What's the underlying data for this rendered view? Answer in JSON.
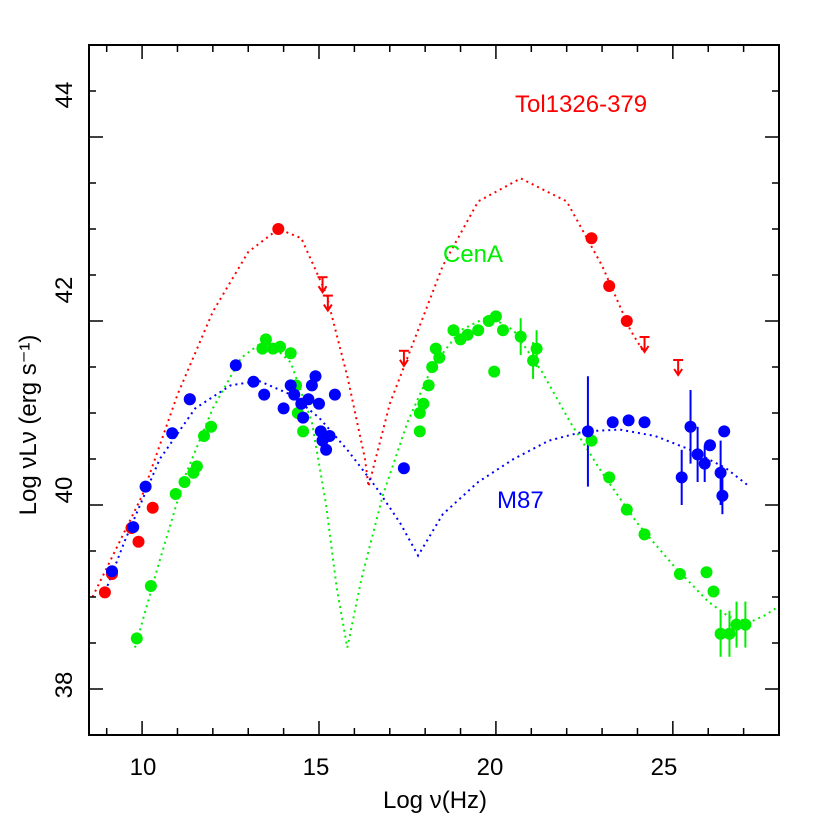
{
  "chart_data": {
    "type": "scatter",
    "xlabel": "Log ν(Hz)",
    "ylabel": "Log νLν (erg s⁻¹)",
    "xlim": [
      8.5,
      28
    ],
    "ylim": [
      37.5,
      45
    ],
    "xticks": [
      "10",
      "15",
      "20",
      "25"
    ],
    "yticks": [
      "38",
      "40",
      "42",
      "44"
    ],
    "grid": false,
    "series": [
      {
        "name": "Tol1326-379",
        "color": "#ff0000",
        "points": [
          [
            8.95,
            39.05
          ],
          [
            9.15,
            39.25
          ],
          [
            9.7,
            39.75
          ],
          [
            9.9,
            39.6
          ],
          [
            10.3,
            39.97
          ],
          [
            11.35,
            41.15
          ],
          [
            13.85,
            43.0
          ],
          [
            22.7,
            42.9
          ],
          [
            23.2,
            42.38
          ],
          [
            23.7,
            42.0
          ]
        ],
        "upper_limits": [
          [
            15.1,
            42.4
          ],
          [
            15.25,
            42.2
          ],
          [
            17.4,
            41.6
          ],
          [
            24.2,
            41.75
          ],
          [
            25.15,
            41.5
          ]
        ],
        "model": [
          [
            8.6,
            39.0
          ],
          [
            10.0,
            40.1
          ],
          [
            11.0,
            41.2
          ],
          [
            12.0,
            42.1
          ],
          [
            13.0,
            42.75
          ],
          [
            13.85,
            43.0
          ],
          [
            14.5,
            42.9
          ],
          [
            15.2,
            42.3
          ],
          [
            15.8,
            41.4
          ],
          [
            16.3,
            40.5
          ],
          [
            16.4,
            40.2
          ],
          [
            16.6,
            40.5
          ],
          [
            17.0,
            41.1
          ],
          [
            17.7,
            41.8
          ],
          [
            18.5,
            42.6
          ],
          [
            19.5,
            43.3
          ],
          [
            20.7,
            43.55
          ],
          [
            22.0,
            43.3
          ],
          [
            23.0,
            42.6
          ],
          [
            23.8,
            41.9
          ],
          [
            24.2,
            41.65
          ]
        ]
      },
      {
        "name": "CenA",
        "color": "#00ee00",
        "points": [
          [
            9.85,
            38.55
          ],
          [
            10.25,
            39.12
          ],
          [
            10.95,
            40.12
          ],
          [
            11.2,
            40.25
          ],
          [
            11.45,
            40.35
          ],
          [
            11.55,
            40.42
          ],
          [
            11.75,
            40.75
          ],
          [
            11.95,
            40.85
          ],
          [
            13.4,
            41.7
          ],
          [
            13.5,
            41.8
          ],
          [
            13.7,
            41.7
          ],
          [
            13.9,
            41.72
          ],
          [
            14.2,
            41.65
          ],
          [
            14.35,
            41.3
          ],
          [
            14.4,
            41.0
          ],
          [
            14.55,
            40.8
          ],
          [
            17.85,
            40.8
          ],
          [
            17.85,
            41.0
          ],
          [
            17.95,
            41.1
          ],
          [
            18.1,
            41.3
          ],
          [
            18.2,
            41.5
          ],
          [
            18.3,
            41.7
          ],
          [
            18.4,
            41.6
          ],
          [
            18.8,
            41.9
          ],
          [
            19.0,
            41.8
          ],
          [
            19.2,
            41.85
          ],
          [
            19.5,
            41.9
          ],
          [
            19.8,
            42.0
          ],
          [
            20.0,
            42.05
          ],
          [
            19.95,
            41.45
          ],
          [
            20.2,
            41.9
          ],
          [
            20.7,
            41.83
          ],
          [
            21.05,
            41.57
          ],
          [
            21.15,
            41.7
          ],
          [
            22.7,
            40.7
          ],
          [
            23.2,
            40.3
          ],
          [
            23.7,
            39.95
          ],
          [
            24.2,
            39.68
          ],
          [
            25.2,
            39.25
          ],
          [
            25.95,
            39.27
          ],
          [
            26.15,
            39.06
          ],
          [
            26.35,
            38.6
          ],
          [
            26.6,
            38.6
          ],
          [
            26.8,
            38.7
          ],
          [
            27.05,
            38.7
          ]
        ],
        "model": [
          [
            9.8,
            38.45
          ],
          [
            10.5,
            39.4
          ],
          [
            11.2,
            40.3
          ],
          [
            12.0,
            41.05
          ],
          [
            12.8,
            41.6
          ],
          [
            13.5,
            41.8
          ],
          [
            14.2,
            41.55
          ],
          [
            14.8,
            40.9
          ],
          [
            15.2,
            40.0
          ],
          [
            15.5,
            39.1
          ],
          [
            15.8,
            38.45
          ],
          [
            16.2,
            39.2
          ],
          [
            16.8,
            40.1
          ],
          [
            17.5,
            40.9
          ],
          [
            18.2,
            41.5
          ],
          [
            19.0,
            41.9
          ],
          [
            19.8,
            42.05
          ],
          [
            20.5,
            41.9
          ],
          [
            21.3,
            41.45
          ],
          [
            22.1,
            40.9
          ],
          [
            23.0,
            40.35
          ],
          [
            24.0,
            39.8
          ],
          [
            25.0,
            39.35
          ],
          [
            26.0,
            38.95
          ],
          [
            26.6,
            38.78
          ],
          [
            27.2,
            38.73
          ],
          [
            27.6,
            38.8
          ],
          [
            28.0,
            38.9
          ]
        ]
      },
      {
        "name": "M87",
        "color": "#0000ff",
        "points": [
          [
            9.15,
            39.28
          ],
          [
            9.75,
            39.76
          ],
          [
            10.1,
            40.2
          ],
          [
            10.85,
            40.78
          ],
          [
            11.35,
            41.15
          ],
          [
            12.65,
            41.52
          ],
          [
            13.15,
            41.34
          ],
          [
            13.45,
            41.2
          ],
          [
            14.0,
            41.05
          ],
          [
            14.2,
            41.3
          ],
          [
            14.3,
            41.2
          ],
          [
            14.5,
            41.1
          ],
          [
            14.55,
            40.95
          ],
          [
            14.7,
            41.15
          ],
          [
            14.8,
            41.3
          ],
          [
            14.9,
            41.4
          ],
          [
            15.0,
            41.1
          ],
          [
            15.05,
            40.8
          ],
          [
            15.1,
            40.7
          ],
          [
            15.2,
            40.6
          ],
          [
            15.3,
            40.75
          ],
          [
            15.45,
            41.2
          ],
          [
            17.4,
            40.4
          ],
          [
            22.6,
            40.8
          ],
          [
            23.3,
            40.9
          ],
          [
            23.75,
            40.92
          ],
          [
            24.2,
            40.9
          ],
          [
            25.25,
            40.3
          ],
          [
            25.5,
            40.85
          ],
          [
            25.7,
            40.55
          ],
          [
            25.9,
            40.45
          ],
          [
            26.05,
            40.65
          ],
          [
            26.35,
            40.35
          ],
          [
            26.4,
            40.1
          ],
          [
            26.45,
            40.8
          ]
        ],
        "model": [
          [
            8.9,
            39.0
          ],
          [
            9.5,
            39.6
          ],
          [
            10.5,
            40.5
          ],
          [
            11.5,
            41.05
          ],
          [
            12.5,
            41.3
          ],
          [
            13.3,
            41.35
          ],
          [
            14.2,
            41.2
          ],
          [
            15.0,
            40.95
          ],
          [
            15.8,
            40.6
          ],
          [
            16.6,
            40.2
          ],
          [
            17.3,
            39.8
          ],
          [
            17.8,
            39.45
          ],
          [
            18.5,
            39.9
          ],
          [
            19.5,
            40.25
          ],
          [
            20.5,
            40.5
          ],
          [
            21.5,
            40.7
          ],
          [
            22.5,
            40.8
          ],
          [
            23.5,
            40.82
          ],
          [
            24.5,
            40.75
          ],
          [
            25.5,
            40.6
          ],
          [
            26.5,
            40.4
          ],
          [
            27.1,
            40.22
          ]
        ]
      }
    ]
  }
}
